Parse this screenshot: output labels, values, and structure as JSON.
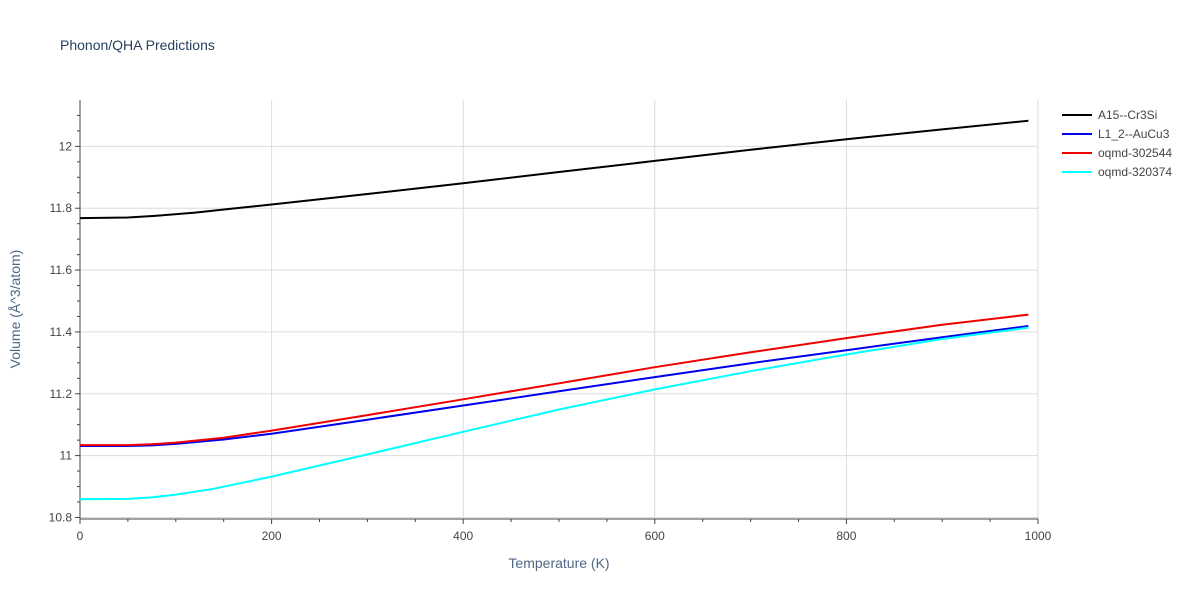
{
  "chart_data": {
    "type": "line",
    "title": "Phonon/QHA Predictions",
    "xlabel": "Temperature (K)",
    "ylabel": "Volume (Å^3/atom)",
    "xlim": [
      0,
      1000
    ],
    "ylim": [
      10.795,
      12.15
    ],
    "xticks": [
      0,
      200,
      400,
      600,
      800,
      1000
    ],
    "yticks": [
      10.8,
      11,
      11.2,
      11.4,
      11.6,
      11.8,
      12
    ],
    "xtick_labels": [
      "0",
      "200",
      "400",
      "600",
      "800",
      "1000"
    ],
    "ytick_labels": [
      "10.8",
      "11",
      "11.2",
      "11.4",
      "11.6",
      "11.8",
      "12"
    ],
    "grid": true,
    "legend_position": "top-right",
    "series": [
      {
        "name": "A15--Cr3Si",
        "color": "#000000",
        "x": [
          0,
          50,
          80,
          120,
          160,
          200,
          300,
          400,
          500,
          600,
          700,
          800,
          900,
          990
        ],
        "y": [
          11.768,
          11.77,
          11.776,
          11.786,
          11.799,
          11.812,
          11.846,
          11.881,
          11.917,
          11.953,
          11.989,
          12.023,
          12.055,
          12.083
        ]
      },
      {
        "name": "L1_2--AuCu3",
        "color": "#0000ee",
        "x": [
          0,
          50,
          75,
          100,
          150,
          200,
          300,
          400,
          500,
          600,
          700,
          800,
          900,
          990
        ],
        "y": [
          11.031,
          11.031,
          11.033,
          11.038,
          11.052,
          11.071,
          11.116,
          11.162,
          11.208,
          11.254,
          11.299,
          11.341,
          11.383,
          11.419
        ]
      },
      {
        "name": "oqmd-302544",
        "color": "#ee0000",
        "x": [
          0,
          50,
          75,
          100,
          150,
          200,
          300,
          400,
          500,
          600,
          700,
          800,
          900,
          990
        ],
        "y": [
          11.034,
          11.034,
          11.037,
          11.042,
          11.058,
          11.081,
          11.131,
          11.182,
          11.234,
          11.286,
          11.334,
          11.38,
          11.423,
          11.456
        ]
      },
      {
        "name": "oqmd-320374",
        "color": "#00ffff",
        "x": [
          0,
          50,
          75,
          100,
          140,
          200,
          300,
          400,
          500,
          600,
          700,
          800,
          900,
          990
        ],
        "y": [
          10.859,
          10.86,
          10.865,
          10.874,
          10.893,
          10.932,
          11.004,
          11.077,
          11.149,
          11.214,
          11.273,
          11.327,
          11.377,
          11.414
        ]
      }
    ]
  }
}
